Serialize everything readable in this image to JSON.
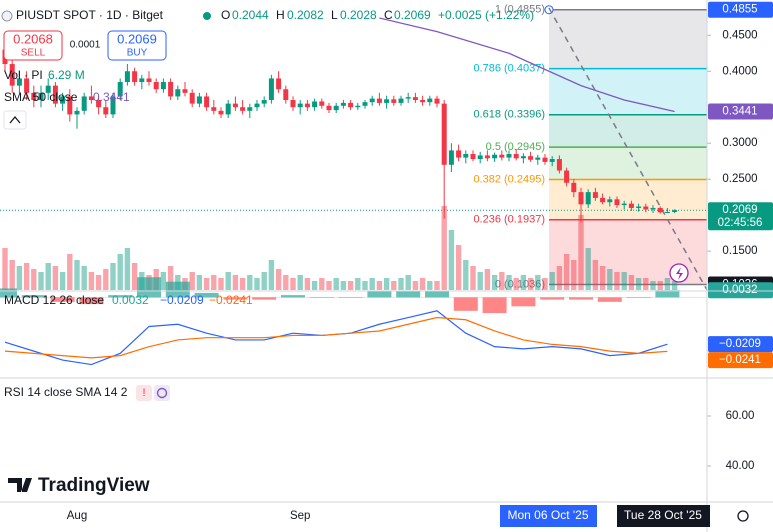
{
  "header": {
    "symbol": "PIUSDT SPOT · 1D · Bitget",
    "o_label": "O",
    "open": "0.2044",
    "h_label": "H",
    "high": "0.2082",
    "l_label": "L",
    "low": "0.2028",
    "c_label": "C",
    "close": "0.2069",
    "change": "+0.0025 (+1.22%)",
    "sell_price": "0.2068",
    "sell": "SELL",
    "spread": "0.0001",
    "buy_price": "0.2069",
    "buy": "BUY",
    "vol_label": "Vol · PI",
    "vol_value": "6.29 M",
    "sma_label": "SMA 50 close",
    "sma_value": "0.3441",
    "macd_label": "MACD 12 26 close",
    "macd_hist": "0.0032",
    "macd_value": "−0.0209",
    "macd_signal": "−0.0241",
    "rsi_label": "RSI 14 close SMA 14 2",
    "logo": "TradingView",
    "crosshair_start": "Mon 06 Oct '25",
    "crosshair_end": "Tue 28 Oct '25"
  },
  "chart_data": {
    "type": "candlestick",
    "up_color": "#089981",
    "down_color": "#f23645",
    "categories": [
      null,
      null,
      null,
      null,
      null,
      null,
      null,
      null,
      null,
      null,
      "Aug",
      null,
      null,
      null,
      null,
      null,
      null,
      null,
      null,
      null,
      null,
      null,
      null,
      null,
      null,
      null,
      null,
      null,
      null,
      null,
      null,
      null,
      null,
      null,
      null,
      null,
      null,
      null,
      null,
      null,
      null,
      "Sep",
      null,
      null,
      null,
      null,
      null,
      null,
      null,
      null,
      null,
      null,
      null,
      null,
      null,
      null,
      null,
      null,
      null,
      null,
      null,
      null,
      null,
      null,
      null,
      null,
      null,
      null,
      null,
      null,
      null,
      null,
      null,
      null,
      null,
      null,
      null,
      null,
      null,
      null,
      null,
      null,
      null,
      null,
      null,
      null,
      null,
      null,
      null,
      null,
      null,
      null,
      null,
      null
    ],
    "ohlc": [
      [
        0.43,
        0.44,
        0.4,
        0.41
      ],
      [
        0.41,
        0.42,
        0.37,
        0.38
      ],
      [
        0.38,
        0.4,
        0.37,
        0.39
      ],
      [
        0.39,
        0.4,
        0.36,
        0.37
      ],
      [
        0.37,
        0.38,
        0.35,
        0.36
      ],
      [
        0.36,
        0.38,
        0.35,
        0.37
      ],
      [
        0.37,
        0.39,
        0.36,
        0.38
      ],
      [
        0.38,
        0.385,
        0.35,
        0.355
      ],
      [
        0.355,
        0.37,
        0.345,
        0.365
      ],
      [
        0.365,
        0.375,
        0.33,
        0.34
      ],
      [
        0.34,
        0.35,
        0.32,
        0.345
      ],
      [
        0.345,
        0.37,
        0.34,
        0.365
      ],
      [
        0.365,
        0.38,
        0.355,
        0.36
      ],
      [
        0.36,
        0.365,
        0.34,
        0.35
      ],
      [
        0.35,
        0.36,
        0.335,
        0.34
      ],
      [
        0.34,
        0.37,
        0.335,
        0.365
      ],
      [
        0.365,
        0.39,
        0.36,
        0.385
      ],
      [
        0.385,
        0.41,
        0.38,
        0.4
      ],
      [
        0.4,
        0.405,
        0.38,
        0.385
      ],
      [
        0.385,
        0.395,
        0.375,
        0.39
      ],
      [
        0.39,
        0.4,
        0.38,
        0.385
      ],
      [
        0.385,
        0.39,
        0.37,
        0.375
      ],
      [
        0.375,
        0.39,
        0.37,
        0.385
      ],
      [
        0.385,
        0.39,
        0.36,
        0.365
      ],
      [
        0.365,
        0.38,
        0.36,
        0.375
      ],
      [
        0.375,
        0.385,
        0.365,
        0.37
      ],
      [
        0.37,
        0.375,
        0.35,
        0.355
      ],
      [
        0.355,
        0.37,
        0.35,
        0.365
      ],
      [
        0.365,
        0.37,
        0.345,
        0.35
      ],
      [
        0.35,
        0.36,
        0.34,
        0.345
      ],
      [
        0.345,
        0.35,
        0.335,
        0.34
      ],
      [
        0.34,
        0.36,
        0.335,
        0.355
      ],
      [
        0.355,
        0.365,
        0.345,
        0.35
      ],
      [
        0.35,
        0.36,
        0.34,
        0.345
      ],
      [
        0.345,
        0.355,
        0.335,
        0.35
      ],
      [
        0.35,
        0.36,
        0.345,
        0.355
      ],
      [
        0.355,
        0.365,
        0.35,
        0.36
      ],
      [
        0.36,
        0.395,
        0.355,
        0.39
      ],
      [
        0.39,
        0.4,
        0.37,
        0.375
      ],
      [
        0.375,
        0.38,
        0.355,
        0.36
      ],
      [
        0.36,
        0.365,
        0.345,
        0.35
      ],
      [
        0.35,
        0.36,
        0.34,
        0.355
      ],
      [
        0.355,
        0.36,
        0.345,
        0.35
      ],
      [
        0.35,
        0.362,
        0.345,
        0.358
      ],
      [
        0.358,
        0.362,
        0.348,
        0.352
      ],
      [
        0.352,
        0.356,
        0.342,
        0.346
      ],
      [
        0.346,
        0.356,
        0.342,
        0.352
      ],
      [
        0.352,
        0.36,
        0.348,
        0.356
      ],
      [
        0.356,
        0.36,
        0.346,
        0.35
      ],
      [
        0.35,
        0.356,
        0.346,
        0.352
      ],
      [
        0.352,
        0.36,
        0.348,
        0.357
      ],
      [
        0.357,
        0.366,
        0.352,
        0.362
      ],
      [
        0.362,
        0.37,
        0.352,
        0.356
      ],
      [
        0.356,
        0.366,
        0.348,
        0.361
      ],
      [
        0.361,
        0.366,
        0.352,
        0.356
      ],
      [
        0.356,
        0.366,
        0.352,
        0.362
      ],
      [
        0.362,
        0.37,
        0.356,
        0.364
      ],
      [
        0.364,
        0.37,
        0.356,
        0.36
      ],
      [
        0.36,
        0.366,
        0.352,
        0.357
      ],
      [
        0.357,
        0.366,
        0.352,
        0.362
      ],
      [
        0.362,
        0.366,
        0.35,
        0.355
      ],
      [
        0.355,
        0.36,
        0.195,
        0.27
      ],
      [
        0.27,
        0.3,
        0.26,
        0.29
      ],
      [
        0.29,
        0.298,
        0.275,
        0.28
      ],
      [
        0.28,
        0.29,
        0.272,
        0.285
      ],
      [
        0.285,
        0.29,
        0.275,
        0.278
      ],
      [
        0.278,
        0.288,
        0.272,
        0.283
      ],
      [
        0.283,
        0.29,
        0.275,
        0.279
      ],
      [
        0.279,
        0.287,
        0.274,
        0.284
      ],
      [
        0.284,
        0.29,
        0.276,
        0.28
      ],
      [
        0.28,
        0.29,
        0.275,
        0.285
      ],
      [
        0.285,
        0.292,
        0.276,
        0.279
      ],
      [
        0.279,
        0.286,
        0.272,
        0.282
      ],
      [
        0.282,
        0.288,
        0.274,
        0.277
      ],
      [
        0.277,
        0.284,
        0.27,
        0.28
      ],
      [
        0.28,
        0.285,
        0.27,
        0.274
      ],
      [
        0.274,
        0.282,
        0.268,
        0.278
      ],
      [
        0.278,
        0.283,
        0.258,
        0.262
      ],
      [
        0.262,
        0.266,
        0.24,
        0.245
      ],
      [
        0.245,
        0.25,
        0.225,
        0.232
      ],
      [
        0.232,
        0.238,
        0.19,
        0.215
      ],
      [
        0.215,
        0.236,
        0.21,
        0.232
      ],
      [
        0.232,
        0.238,
        0.22,
        0.224
      ],
      [
        0.224,
        0.23,
        0.215,
        0.218
      ],
      [
        0.218,
        0.226,
        0.212,
        0.222
      ],
      [
        0.222,
        0.226,
        0.21,
        0.214
      ],
      [
        0.214,
        0.22,
        0.208,
        0.216
      ],
      [
        0.216,
        0.22,
        0.206,
        0.21
      ],
      [
        0.21,
        0.216,
        0.205,
        0.212
      ],
      [
        0.212,
        0.216,
        0.204,
        0.208
      ],
      [
        0.208,
        0.214,
        0.203,
        0.21
      ],
      [
        0.21,
        0.212,
        0.202,
        0.204
      ],
      [
        0.204,
        0.21,
        0.2028,
        0.2044
      ],
      [
        0.2044,
        0.2082,
        0.2028,
        0.2069
      ]
    ],
    "volume": [
      14,
      10,
      8,
      9,
      7,
      6,
      9,
      8,
      6,
      12,
      10,
      8,
      6,
      5,
      7,
      9,
      12,
      14,
      9,
      6,
      5,
      7,
      6,
      8,
      5,
      4,
      6,
      5,
      4,
      5,
      4,
      6,
      5,
      4,
      5,
      4,
      6,
      10,
      7,
      5,
      4,
      5,
      4,
      3,
      4,
      3,
      4,
      3,
      3,
      4,
      3,
      4,
      3,
      4,
      3,
      4,
      5,
      3,
      4,
      3,
      3,
      28,
      20,
      15,
      10,
      8,
      6,
      7,
      5,
      6,
      5,
      4,
      5,
      4,
      5,
      4,
      6,
      8,
      12,
      10,
      25,
      14,
      10,
      8,
      7,
      6,
      6,
      5,
      4,
      4,
      3,
      3,
      4,
      3
    ],
    "volume_ylim": [
      0,
      30
    ],
    "ylim": [
      0.096,
      0.499
    ],
    "yticks": [
      {
        "value": 0.45,
        "label": "0.4500"
      },
      {
        "value": 0.4,
        "label": "0.4000"
      },
      {
        "value": 0.3,
        "label": "0.3000"
      },
      {
        "value": 0.25,
        "label": "0.2500"
      },
      {
        "value": 0.15,
        "label": "0.1500"
      }
    ],
    "price_labels": [
      {
        "value": 0.4855,
        "label": "0.4855",
        "color": "#2962ff"
      },
      {
        "value": 0.3441,
        "label": "0.3441",
        "color": "#7e57c2"
      },
      {
        "value": 0.2069,
        "label": "0.2069",
        "color": "#089981",
        "countdown": "02:45:56"
      },
      {
        "value": 0.1036,
        "label": "0.1036",
        "color": "#131722"
      }
    ],
    "last_price": 0.2069,
    "sma": {
      "name": "SMA 50",
      "color": "#7e57c2",
      "x": [
        52,
        60,
        70,
        80,
        86,
        93
      ],
      "values": [
        0.474,
        0.455,
        0.425,
        0.38,
        0.36,
        0.3441
      ]
    },
    "fib": [
      {
        "label": "1 (0.4855)",
        "value": 0.4855,
        "color": "#787b86"
      },
      {
        "label": "0.786 (0.4037)",
        "value": 0.4037,
        "color": "#00bcd4"
      },
      {
        "label": "0.618 (0.3396)",
        "value": 0.3396,
        "color": "#089981"
      },
      {
        "label": "0.5 (0.2945)",
        "value": 0.2945,
        "color": "#4caf50"
      },
      {
        "label": "0.382 (0.2495)",
        "value": 0.2495,
        "color": "#ff9800"
      },
      {
        "label": "0.236 (0.1937)",
        "value": 0.1937,
        "color": "#f23645"
      },
      {
        "label": "0 (0.1036)",
        "value": 0.1036,
        "color": "#787b86"
      }
    ],
    "macd": {
      "x": [
        0,
        4,
        8,
        12,
        16,
        20,
        24,
        28,
        32,
        36,
        40,
        44,
        48,
        52,
        56,
        60,
        64,
        68,
        72,
        76,
        80,
        84,
        88,
        92
      ],
      "series": [
        {
          "name": "MACD",
          "color": "#2962ff",
          "values": [
            -0.02,
            -0.024,
            -0.028,
            -0.03,
            -0.025,
            -0.013,
            -0.012,
            -0.016,
            -0.019,
            -0.019,
            -0.016,
            -0.017,
            -0.016,
            -0.012,
            -0.009,
            -0.006,
            -0.016,
            -0.022,
            -0.023,
            -0.022,
            -0.023,
            -0.026,
            -0.025,
            -0.0209
          ]
        },
        {
          "name": "Signal",
          "color": "#ff6d00",
          "values": [
            -0.024,
            -0.025,
            -0.026,
            -0.027,
            -0.026,
            -0.022,
            -0.019,
            -0.018,
            -0.018,
            -0.018,
            -0.017,
            -0.017,
            -0.016,
            -0.015,
            -0.012,
            -0.009,
            -0.01,
            -0.015,
            -0.019,
            -0.021,
            -0.022,
            -0.024,
            -0.025,
            -0.0241
          ]
        }
      ],
      "histogram": [
        0.004,
        0.001,
        -0.002,
        -0.003,
        0.001,
        0.009,
        0.007,
        0.002,
        -0.001,
        -0.001,
        0.001,
        0,
        0,
        0.003,
        0.003,
        0.003,
        -0.006,
        -0.007,
        -0.004,
        -0.001,
        -0.001,
        -0.002,
        0,
        0.0032
      ],
      "ylim": [
        -0.036,
        0.0024
      ],
      "axis_labels": [
        {
          "value": 0.0032,
          "label": "0.0032",
          "color": "#26a69a"
        },
        {
          "value": -0.0209,
          "label": "−0.0209",
          "color": "#2962ff"
        },
        {
          "value": -0.0241,
          "label": "−0.0241",
          "color": "#ff6d00"
        }
      ]
    },
    "rsi": {
      "ylim": [
        26.4,
        74.4
      ],
      "yticks": [
        {
          "value": 60,
          "label": "60.00"
        },
        {
          "value": 40,
          "label": "40.00"
        }
      ]
    }
  }
}
